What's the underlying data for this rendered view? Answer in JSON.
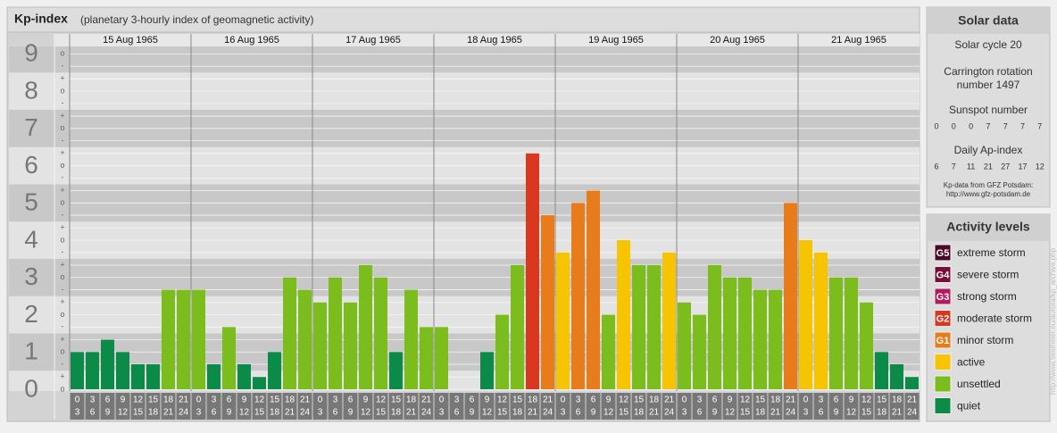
{
  "chart_data": {
    "type": "bar",
    "title": "Kp-index",
    "subtitle": "(planetary 3-hourly index of geomagnetic activity)",
    "categories": [
      "15 Aug 1965",
      "16 Aug 1965",
      "17 Aug 1965",
      "18 Aug 1965",
      "19 Aug 1965",
      "20 Aug 1965",
      "21 Aug 1965"
    ],
    "hour_labels": [
      [
        "0",
        "3"
      ],
      [
        "3",
        "6"
      ],
      [
        "6",
        "9"
      ],
      [
        "9",
        "12"
      ],
      [
        "12",
        "15"
      ],
      [
        "15",
        "18"
      ],
      [
        "18",
        "21"
      ],
      [
        "21",
        "24"
      ]
    ],
    "values": [
      [
        1,
        1,
        1.33,
        1,
        0.67,
        0.67,
        2.67,
        2.67
      ],
      [
        2.67,
        0.67,
        1.67,
        0.67,
        0.33,
        1,
        3,
        2.67
      ],
      [
        2.33,
        3,
        2.33,
        3.33,
        3,
        1,
        2.67,
        1.67
      ],
      [
        1.67,
        0,
        0,
        1,
        2,
        3.33,
        6.33,
        4.67
      ],
      [
        3.67,
        5,
        5.33,
        2,
        4,
        3.33,
        3.33,
        3.67
      ],
      [
        2.33,
        2,
        3.33,
        3,
        3,
        2.67,
        2.67,
        5
      ],
      [
        4,
        3.67,
        3,
        3,
        2.33,
        1,
        0.67,
        0.33
      ]
    ],
    "colors": [
      [
        "#0b8a48",
        "#0b8a48",
        "#0b8a48",
        "#0b8a48",
        "#0b8a48",
        "#0b8a48",
        "#7cbd1e",
        "#7cbd1e"
      ],
      [
        "#7cbd1e",
        "#0b8a48",
        "#7cbd1e",
        "#0b8a48",
        "#0b8a48",
        "#0b8a48",
        "#7cbd1e",
        "#7cbd1e"
      ],
      [
        "#7cbd1e",
        "#7cbd1e",
        "#7cbd1e",
        "#7cbd1e",
        "#7cbd1e",
        "#0b8a48",
        "#7cbd1e",
        "#7cbd1e"
      ],
      [
        "#7cbd1e",
        "#0b8a48",
        "#0b8a48",
        "#0b8a48",
        "#7cbd1e",
        "#7cbd1e",
        "#d9381e",
        "#e87b1a"
      ],
      [
        "#f7c400",
        "#e87b1a",
        "#e87b1a",
        "#7cbd1e",
        "#f7c400",
        "#7cbd1e",
        "#7cbd1e",
        "#f7c400"
      ],
      [
        "#7cbd1e",
        "#7cbd1e",
        "#7cbd1e",
        "#7cbd1e",
        "#7cbd1e",
        "#7cbd1e",
        "#7cbd1e",
        "#e87b1a"
      ],
      [
        "#f7c400",
        "#f7c400",
        "#7cbd1e",
        "#7cbd1e",
        "#7cbd1e",
        "#0b8a48",
        "#0b8a48",
        "#0b8a48"
      ]
    ],
    "ylim": [
      0,
      9.2
    ],
    "yticks": [
      0,
      1,
      2,
      3,
      4,
      5,
      6,
      7,
      8,
      9
    ],
    "minor_ticks": [
      {
        "value": 0,
        "label": "o"
      },
      {
        "value": 0.33,
        "label": "+"
      },
      {
        "value": 0.67,
        "label": "-"
      },
      {
        "value": 1,
        "label": "o"
      },
      {
        "value": 1.33,
        "label": "+"
      },
      {
        "value": 1.67,
        "label": "-"
      },
      {
        "value": 2,
        "label": "o"
      },
      {
        "value": 2.33,
        "label": "+"
      },
      {
        "value": 2.67,
        "label": "-"
      },
      {
        "value": 3,
        "label": "o"
      },
      {
        "value": 3.33,
        "label": "+"
      },
      {
        "value": 3.67,
        "label": "-"
      },
      {
        "value": 4,
        "label": "o"
      },
      {
        "value": 4.33,
        "label": "+"
      },
      {
        "value": 4.67,
        "label": "-"
      },
      {
        "value": 5,
        "label": "o"
      },
      {
        "value": 5.33,
        "label": "+"
      },
      {
        "value": 5.67,
        "label": "-"
      },
      {
        "value": 6,
        "label": "o"
      },
      {
        "value": 6.33,
        "label": "+"
      },
      {
        "value": 6.67,
        "label": "-"
      },
      {
        "value": 7,
        "label": "o"
      },
      {
        "value": 7.33,
        "label": "+"
      },
      {
        "value": 7.67,
        "label": "-"
      },
      {
        "value": 8,
        "label": "o"
      },
      {
        "value": 8.33,
        "label": "+"
      },
      {
        "value": 8.67,
        "label": "-"
      },
      {
        "value": 9,
        "label": "o"
      }
    ],
    "grid": true
  },
  "solar_data": {
    "title": "Solar data",
    "solar_cycle": "Solar cycle 20",
    "carrington": [
      "Carrington rotation",
      "number 1497"
    ],
    "sunspot_title": "Sunspot number",
    "sunspot_numbers": [
      0,
      0,
      0,
      7,
      7,
      7,
      7
    ],
    "ap_title": "Daily Ap-index",
    "ap_values": [
      6,
      7,
      11,
      21,
      27,
      17,
      12
    ],
    "source": [
      "Kp-data from GFZ Potsdam:",
      "http://www.gfz-potsdam.de"
    ]
  },
  "activity_levels": {
    "title": "Activity levels",
    "items": [
      {
        "badge": "G5",
        "label": "extreme storm",
        "color": "#4a0a25"
      },
      {
        "badge": "G4",
        "label": "severe storm",
        "color": "#7a0c3a"
      },
      {
        "badge": "G3",
        "label": "strong storm",
        "color": "#b5195f"
      },
      {
        "badge": "G2",
        "label": "moderate storm",
        "color": "#d9381e"
      },
      {
        "badge": "G1",
        "label": "minor storm",
        "color": "#e87b1a"
      },
      {
        "label": "active",
        "color": "#f7c400"
      },
      {
        "label": "unsettled",
        "color": "#7cbd1e"
      },
      {
        "label": "quiet",
        "color": "#0b8a48"
      }
    ]
  },
  "watermark": "http://www.tiesmeier.eu/aurora/kp_archive.php"
}
